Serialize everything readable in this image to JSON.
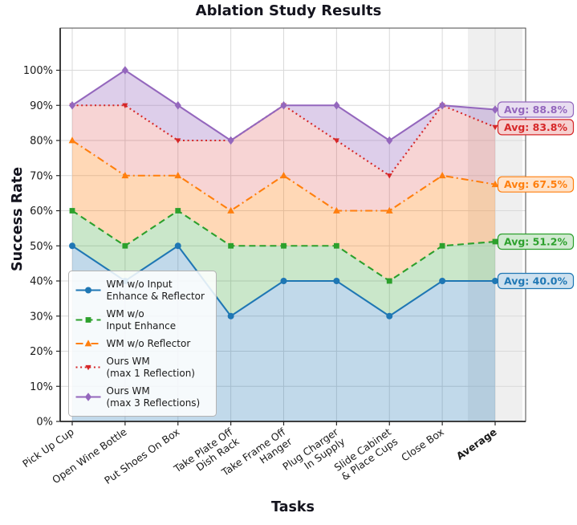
{
  "chart_data": {
    "type": "area",
    "title": "Ablation Study Results",
    "xlabel": "Tasks",
    "ylabel": "Success Rate",
    "ylim": [
      0,
      112
    ],
    "yticks": [
      0,
      10,
      20,
      30,
      40,
      50,
      60,
      70,
      80,
      90,
      100
    ],
    "ytick_labels": [
      "0%",
      "10%",
      "20%",
      "30%",
      "40%",
      "50%",
      "60%",
      "70%",
      "80%",
      "90%",
      "100%"
    ],
    "grid": true,
    "legend_position": "lower left",
    "categories": [
      "Pick Up Cup",
      "Open Wine Bottle",
      "Put Shoes On Box",
      "Take Plate Off\nDish Rack",
      "Take Frame Off\nHanger",
      "Plug Charger\nIn Supply",
      "Slide Cabinet\n& Place Cups",
      "Close Box",
      "Average"
    ],
    "highlight_category": "Average",
    "highlight_band_color": "#e5e5e5",
    "series": [
      {
        "name": "WM w/o Input\nEnhance & Reflector",
        "color": "#1f77b4",
        "line_style": "solid",
        "marker": "circle",
        "fill_opacity": 0.28,
        "values": [
          50,
          40,
          50,
          30,
          40,
          40,
          30,
          40,
          40.0
        ],
        "avg": 40.0,
        "avg_label": "Avg: 40.0%"
      },
      {
        "name": "WM w/o\nInput Enhance",
        "color": "#2ca02c",
        "line_style": "dashed",
        "marker": "square",
        "fill_opacity": 0.25,
        "values": [
          60,
          50,
          60,
          50,
          50,
          50,
          40,
          50,
          51.2
        ],
        "avg": 51.2,
        "avg_label": "Avg: 51.2%"
      },
      {
        "name": "WM w/o Reflector",
        "color": "#ff7f0e",
        "line_style": "dashdot",
        "marker": "triangle-up",
        "fill_opacity": 0.3,
        "values": [
          80,
          70,
          70,
          60,
          70,
          60,
          60,
          70,
          67.5
        ],
        "avg": 67.5,
        "avg_label": "Avg: 67.5%"
      },
      {
        "name": "Ours WM\n(max 1 Reflection)",
        "color": "#d62728",
        "line_style": "dotted",
        "marker": "triangle-down",
        "fill_opacity": 0.2,
        "values": [
          90,
          90,
          80,
          80,
          90,
          80,
          70,
          90,
          83.8
        ],
        "avg": 83.8,
        "avg_label": "Avg: 83.8%"
      },
      {
        "name": "Ours WM\n(max 3 Reflections)",
        "color": "#9467bd",
        "line_style": "solid",
        "marker": "diamond",
        "fill_opacity": 0.32,
        "values": [
          90,
          100,
          90,
          80,
          90,
          90,
          80,
          90,
          88.8
        ],
        "avg": 88.8,
        "avg_label": "Avg: 88.8%"
      }
    ]
  }
}
